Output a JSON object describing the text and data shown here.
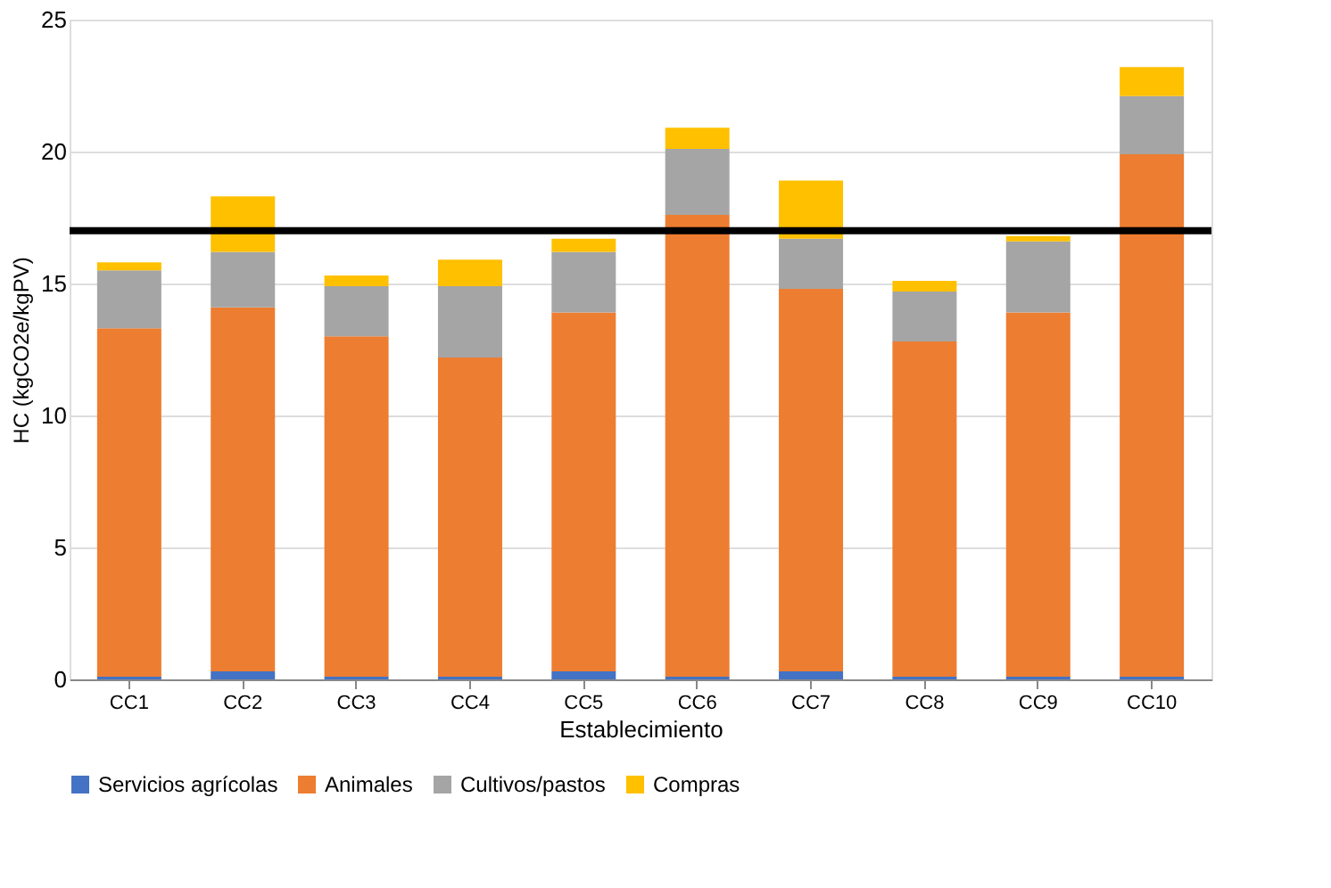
{
  "chart_data": {
    "type": "bar",
    "stacked": true,
    "xlabel": "Establecimiento",
    "ylabel": "HC (kgCO2e/kgPV)",
    "categories": [
      "CC1",
      "CC2",
      "CC3",
      "CC4",
      "CC5",
      "CC6",
      "CC7",
      "CC8",
      "CC9",
      "CC10"
    ],
    "series": [
      {
        "name": "Servicios agrícolas",
        "color": "#4472c4",
        "values": [
          0.1,
          0.3,
          0.1,
          0.1,
          0.3,
          0.1,
          0.3,
          0.1,
          0.1,
          0.1
        ]
      },
      {
        "name": "Animales",
        "color": "#ed7d31",
        "values": [
          13.2,
          13.8,
          12.9,
          12.1,
          13.6,
          17.5,
          14.5,
          12.7,
          13.8,
          19.8
        ]
      },
      {
        "name": "Cultivos/pastos",
        "color": "#a5a5a5",
        "values": [
          2.2,
          2.1,
          1.9,
          2.7,
          2.3,
          2.5,
          1.9,
          1.9,
          2.7,
          2.2
        ]
      },
      {
        "name": "Compras",
        "color": "#ffc000",
        "values": [
          0.3,
          2.1,
          0.4,
          1.0,
          0.5,
          0.8,
          2.2,
          0.4,
          0.2,
          1.1
        ]
      }
    ],
    "ylim": [
      0,
      25
    ],
    "yticks": [
      0,
      5,
      10,
      15,
      20,
      25
    ],
    "grid": "y",
    "legend": "bottom",
    "ref_lines": [
      {
        "axis": "y",
        "value": 17,
        "color": "#000000"
      }
    ]
  }
}
